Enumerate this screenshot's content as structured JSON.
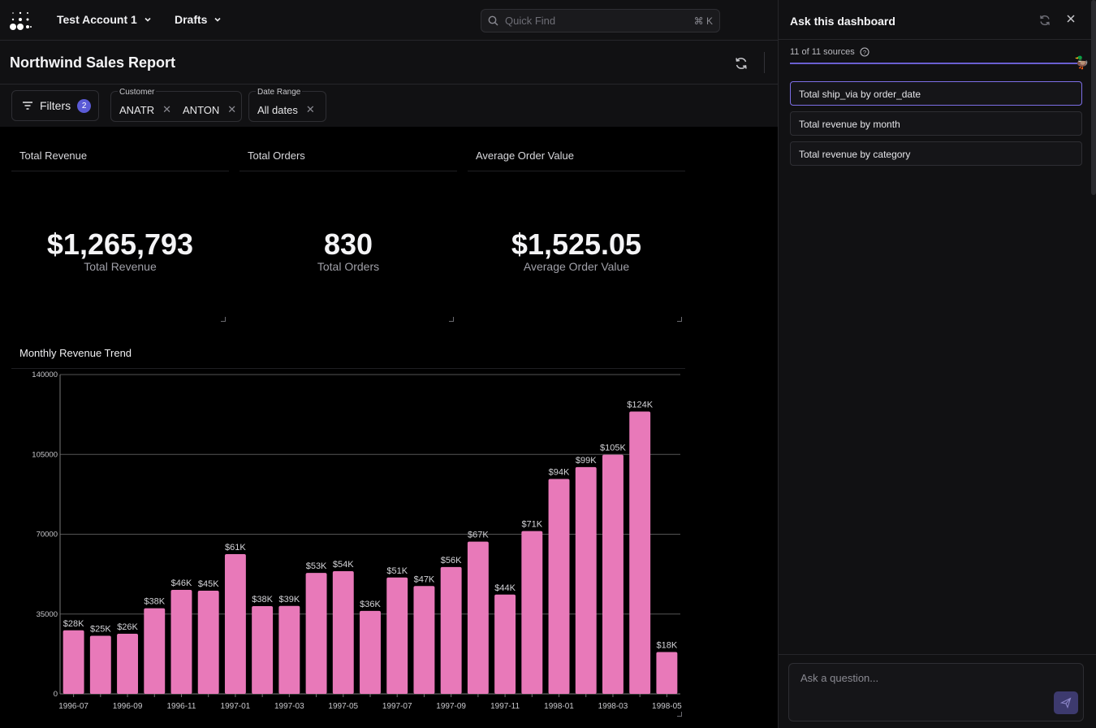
{
  "topbar": {
    "account": "Test Account 1",
    "drafts": "Drafts",
    "search_placeholder": "Quick Find",
    "search_shortcut": "⌘ K"
  },
  "page": {
    "title": "Northwind Sales Report"
  },
  "filters": {
    "button_label": "Filters",
    "count": "2",
    "customer": {
      "label": "Customer",
      "values": [
        "ANATR",
        "ANTON"
      ]
    },
    "date_range": {
      "label": "Date Range",
      "value": "All dates"
    }
  },
  "cards": [
    {
      "title": "Total Revenue",
      "value": "$1,265,793",
      "caption": "Total Revenue"
    },
    {
      "title": "Total Orders",
      "value": "830",
      "caption": "Total Orders"
    },
    {
      "title": "Average Order Value",
      "value": "$1,525.05",
      "caption": "Average Order Value"
    }
  ],
  "chart_title": "Monthly Revenue Trend",
  "chart_data": {
    "type": "bar",
    "title": "Monthly Revenue Trend",
    "xlabel": "",
    "ylabel": "",
    "ylim": [
      0,
      140000
    ],
    "y_ticks": [
      "0",
      "35000",
      "70000",
      "105000",
      "140000"
    ],
    "grid": true,
    "color": "#e879b9",
    "categories": [
      "1996-07",
      "1996-08",
      "1996-09",
      "1996-10",
      "1996-11",
      "1996-12",
      "1997-01",
      "1997-02",
      "1997-03",
      "1997-04",
      "1997-05",
      "1997-06",
      "1997-07",
      "1997-08",
      "1997-09",
      "1997-10",
      "1997-11",
      "1997-12",
      "1998-01",
      "1998-02",
      "1998-03",
      "1998-04",
      "1998-05"
    ],
    "tick_labels": [
      "1996-07",
      "",
      "1996-09",
      "",
      "1996-11",
      "",
      "1997-01",
      "",
      "1997-03",
      "",
      "1997-05",
      "",
      "1997-07",
      "",
      "1997-09",
      "",
      "1997-11",
      "",
      "1998-01",
      "",
      "1998-03",
      "",
      "1998-05"
    ],
    "values": [
      27862,
      25485,
      26381,
      37516,
      45600,
      45240,
      61258,
      38484,
      38547,
      53033,
      53781,
      36363,
      51020,
      47287,
      55629,
      66749,
      43534,
      71398,
      94222,
      99415,
      104854,
      123799,
      18333
    ],
    "labels": [
      "$28K",
      "$25K",
      "$26K",
      "$38K",
      "$46K",
      "$45K",
      "$61K",
      "$38K",
      "$39K",
      "$53K",
      "$54K",
      "$36K",
      "$51K",
      "$47K",
      "$56K",
      "$67K",
      "$44K",
      "$71K",
      "$94K",
      "$99K",
      "$105K",
      "$124K",
      "$18K"
    ]
  },
  "panel": {
    "title": "Ask this dashboard",
    "sources": "11 of 11 sources",
    "progress": 1.0,
    "suggestions": [
      "Total ship_via by order_date",
      "Total revenue by month",
      "Total revenue by category"
    ],
    "input_placeholder": "Ask a question..."
  },
  "colors": {
    "accent": "#5b5bd6",
    "bar": "#e879b9",
    "background": "#000000",
    "panel": "#111113"
  }
}
